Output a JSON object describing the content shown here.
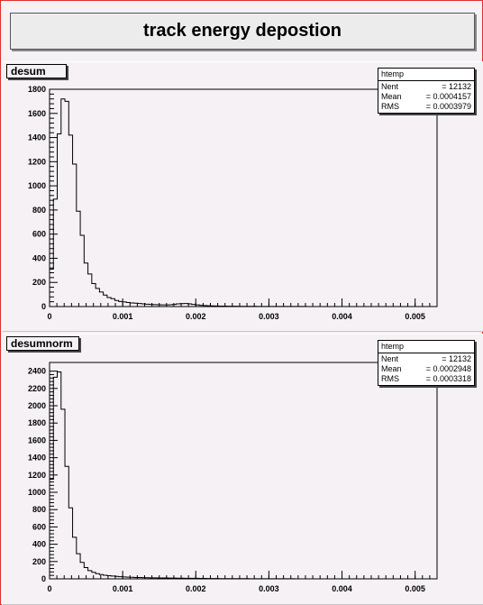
{
  "title": "track energy depostion",
  "colors": {
    "frame": "#e03030",
    "pad_bg": "#f5f1f5",
    "line": "#000000"
  },
  "pads": [
    {
      "label": "desum",
      "stats": {
        "name": "htemp",
        "rows": [
          {
            "key": "Nent",
            "value": "= 12132"
          },
          {
            "key": "Mean",
            "value": "= 0.0004157"
          },
          {
            "key": "RMS",
            "value": "= 0.0003979"
          }
        ]
      }
    },
    {
      "label": "desumnorm",
      "stats": {
        "name": "htemp",
        "rows": [
          {
            "key": "Nent",
            "value": "= 12132"
          },
          {
            "key": "Mean",
            "value": "= 0.0002948"
          },
          {
            "key": "RMS",
            "value": "= 0.0003318"
          }
        ]
      }
    }
  ],
  "chart_data": [
    {
      "type": "bar",
      "name": "desum",
      "xlim": [
        0,
        0.0053
      ],
      "ylim": [
        0,
        1800
      ],
      "x_ticks": [
        "0",
        "0.001",
        "0.002",
        "0.003",
        "0.004",
        "0.005"
      ],
      "x_tick_values": [
        0,
        0.001,
        0.002,
        0.003,
        0.004,
        0.005
      ],
      "y_ticks": [
        0,
        200,
        400,
        600,
        800,
        1000,
        1200,
        1400,
        1600,
        1800
      ],
      "bin_width": 5.25e-05,
      "values": [
        310,
        890,
        1430,
        1720,
        1700,
        1420,
        1180,
        790,
        590,
        360,
        270,
        190,
        150,
        120,
        95,
        75,
        65,
        50,
        42,
        38,
        34,
        30,
        28,
        25,
        22,
        20,
        18,
        16,
        15,
        14,
        14,
        15,
        18,
        22,
        24,
        25,
        22,
        18,
        14,
        10,
        8,
        7,
        6,
        5,
        4,
        4,
        3,
        3,
        3,
        2,
        2,
        2,
        2,
        2,
        1,
        1,
        1,
        1,
        1,
        1,
        1,
        1,
        1,
        1,
        1,
        1,
        1,
        0,
        0,
        0,
        0,
        0,
        0,
        0,
        0,
        0,
        0,
        0,
        0,
        0,
        0,
        0,
        0,
        0,
        0,
        0,
        0,
        0,
        0,
        0,
        0,
        0,
        0,
        0,
        0,
        0,
        0,
        0,
        0,
        0
      ]
    },
    {
      "type": "bar",
      "name": "desumnorm",
      "xlim": [
        0,
        0.0053
      ],
      "ylim": [
        0,
        2500
      ],
      "x_ticks": [
        "0",
        "0.001",
        "0.002",
        "0.003",
        "0.004",
        "0.005"
      ],
      "x_tick_values": [
        0,
        0.001,
        0.002,
        0.003,
        0.004,
        0.005
      ],
      "y_ticks": [
        0,
        200,
        400,
        600,
        800,
        1000,
        1200,
        1400,
        1600,
        1800,
        2000,
        2200,
        2400
      ],
      "bin_width": 5.25e-05,
      "values": [
        1150,
        2330,
        2390,
        1960,
        1300,
        820,
        480,
        290,
        190,
        130,
        95,
        75,
        60,
        50,
        42,
        36,
        32,
        28,
        25,
        22,
        20,
        18,
        16,
        15,
        14,
        13,
        12,
        12,
        11,
        10,
        10,
        9,
        9,
        8,
        8,
        7,
        7,
        6,
        6,
        5,
        5,
        4,
        4,
        4,
        3,
        3,
        3,
        2,
        2,
        2,
        2,
        2,
        1,
        1,
        1,
        1,
        1,
        1,
        1,
        1,
        1,
        1,
        1,
        1,
        0,
        0,
        0,
        0,
        0,
        0,
        0,
        0,
        0,
        0,
        0,
        0,
        0,
        0,
        0,
        0,
        0,
        0,
        0,
        0,
        0,
        0,
        0,
        0,
        0,
        0,
        0,
        0,
        0,
        0,
        0,
        0,
        0,
        0,
        0,
        0
      ]
    }
  ]
}
